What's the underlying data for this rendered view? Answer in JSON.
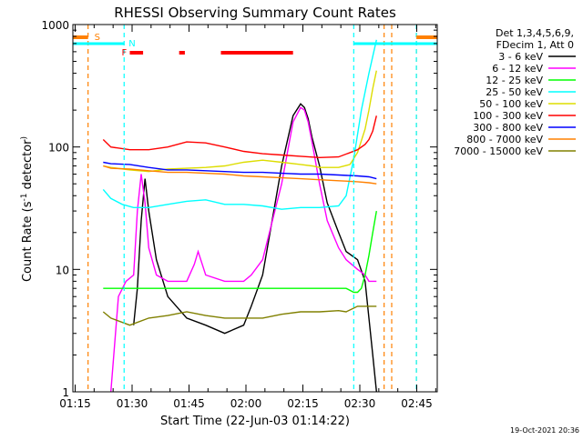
{
  "chart_data": {
    "type": "line",
    "title": "RHESSI Observing Summary Count Rates",
    "xlabel": "Start Time (22-Jun-03 01:14:22)",
    "ylabel_main": "Count Rate (s",
    "ylabel_sup": "-1",
    "ylabel_tail": " detector",
    "ylabel_end": ")",
    "x_unit": "minutes after 01:14:22",
    "xlim": [
      0,
      96
    ],
    "ylim": [
      1,
      1000
    ],
    "yscale": "log",
    "x_ticks": [
      {
        "label": "01:15",
        "value": 0.6
      },
      {
        "label": "01:30",
        "value": 15.6
      },
      {
        "label": "01:45",
        "value": 30.6
      },
      {
        "label": "02:00",
        "value": 45.6
      },
      {
        "label": "02:15",
        "value": 60.6
      },
      {
        "label": "02:30",
        "value": 75.6
      },
      {
        "label": "02:45",
        "value": 90.6
      }
    ],
    "y_ticks": [
      {
        "label": "1",
        "value": 1
      },
      {
        "label": "10",
        "value": 10
      },
      {
        "label": "100",
        "value": 100
      },
      {
        "label": "1000",
        "value": 1000
      }
    ],
    "legend_header": [
      "Det 1,3,4,5,6,9,",
      "FDecim 1, Att 0"
    ],
    "legend_position": "right",
    "timestamp": "19-Oct-2021 20:36",
    "series": [
      {
        "name": "3 - 6 keV",
        "color": "#000000",
        "x": [
          16,
          17,
          18,
          19,
          20,
          22,
          25,
          30,
          35,
          40,
          45,
          47,
          50,
          55,
          58,
          60,
          61,
          62,
          63,
          65,
          67,
          70,
          72,
          75,
          77,
          78,
          79,
          80
        ],
        "values": [
          3.5,
          7,
          25,
          55,
          30,
          12,
          6,
          4,
          3.5,
          3,
          3.5,
          5,
          9,
          70,
          180,
          225,
          210,
          170,
          120,
          70,
          35,
          20,
          14,
          12,
          8,
          4,
          2,
          1
        ]
      },
      {
        "name": "6 - 12 keV",
        "color": "#ff00ff",
        "x": [
          10,
          12,
          14,
          16,
          17,
          18,
          19,
          20,
          22,
          25,
          30,
          32,
          33,
          35,
          40,
          45,
          47,
          50,
          55,
          58,
          60,
          61,
          62,
          63,
          65,
          67,
          70,
          72,
          75,
          77,
          78,
          79,
          80
        ],
        "values": [
          1,
          6,
          8,
          9,
          30,
          60,
          35,
          15,
          9,
          8,
          8,
          11,
          14,
          9,
          8,
          8,
          9,
          12,
          50,
          160,
          210,
          200,
          160,
          110,
          50,
          25,
          15,
          12,
          10,
          9,
          8,
          8,
          8
        ]
      },
      {
        "name": "12 - 25 keV",
        "color": "#00ff00",
        "x": [
          8,
          10,
          15,
          20,
          25,
          30,
          35,
          40,
          45,
          50,
          55,
          60,
          65,
          70,
          72,
          74,
          75,
          76,
          77,
          78,
          79,
          80
        ],
        "values": [
          7,
          7,
          7,
          7,
          7,
          7,
          7,
          7,
          7,
          7,
          7,
          7,
          7,
          7,
          7,
          6.5,
          6.5,
          7,
          9,
          13,
          20,
          30
        ]
      },
      {
        "name": "25 - 50 keV",
        "color": "#00ffff",
        "x": [
          8,
          10,
          13,
          16,
          20,
          25,
          30,
          35,
          40,
          45,
          50,
          55,
          60,
          65,
          70,
          72,
          74,
          76,
          78,
          80
        ],
        "values": [
          45,
          38,
          34,
          32,
          32,
          34,
          36,
          37,
          34,
          34,
          33,
          31,
          32,
          32,
          33,
          40,
          80,
          200,
          400,
          750
        ]
      },
      {
        "name": "50 - 100 keV",
        "color": "#dddd00",
        "x": [
          8,
          10,
          15,
          20,
          25,
          30,
          35,
          40,
          45,
          50,
          55,
          60,
          63,
          65,
          70,
          73,
          75,
          77,
          78,
          79,
          80
        ],
        "values": [
          70,
          68,
          65,
          63,
          66,
          67,
          68,
          70,
          75,
          78,
          75,
          72,
          70,
          68,
          68,
          72,
          90,
          140,
          200,
          300,
          420
        ]
      },
      {
        "name": "100 - 300 keV",
        "color": "#ff0000",
        "x": [
          8,
          10,
          15,
          20,
          25,
          30,
          35,
          40,
          45,
          50,
          55,
          60,
          65,
          70,
          75,
          77,
          78,
          79,
          80
        ],
        "values": [
          115,
          100,
          95,
          95,
          100,
          110,
          108,
          100,
          92,
          88,
          86,
          84,
          82,
          83,
          95,
          105,
          115,
          135,
          180
        ]
      },
      {
        "name": "300 - 800 keV",
        "color": "#0000ff",
        "x": [
          8,
          10,
          15,
          20,
          25,
          30,
          35,
          40,
          45,
          50,
          55,
          60,
          65,
          70,
          75,
          78,
          80
        ],
        "values": [
          75,
          73,
          72,
          68,
          65,
          65,
          64,
          63,
          62,
          62,
          61,
          60,
          60,
          59,
          58,
          57,
          55
        ]
      },
      {
        "name": "800 - 7000 keV",
        "color": "#ff8000",
        "x": [
          8,
          10,
          15,
          20,
          25,
          30,
          35,
          40,
          45,
          50,
          55,
          60,
          65,
          70,
          75,
          78,
          80
        ],
        "values": [
          70,
          67,
          66,
          64,
          62,
          62,
          61,
          60,
          58,
          57,
          56,
          55,
          54,
          53,
          52,
          51,
          50
        ]
      },
      {
        "name": "7000 - 15000 keV",
        "color": "#808000",
        "x": [
          8,
          10,
          15,
          20,
          25,
          30,
          35,
          40,
          45,
          50,
          55,
          60,
          65,
          70,
          72,
          75,
          80
        ],
        "values": [
          4.5,
          4,
          3.5,
          4,
          4.2,
          4.5,
          4.2,
          4,
          4,
          4,
          4.3,
          4.5,
          4.5,
          4.6,
          4.5,
          5,
          5
        ]
      }
    ],
    "annotations": {
      "saa": {
        "label": "S",
        "color": "#ff8000",
        "lines": [
          4,
          82,
          84,
          90.5
        ],
        "bars": [
          [
            0,
            4
          ],
          [
            90.5,
            96
          ]
        ]
      },
      "night": {
        "label": "N",
        "color": "#00ffff",
        "lines": [
          13.5,
          74,
          90.5
        ],
        "bars": [
          [
            0,
            13.5
          ],
          [
            74,
            96
          ]
        ]
      },
      "flare": {
        "label": "F",
        "color": "#ff0000",
        "bars": [
          [
            15,
            18.5
          ],
          [
            28,
            29.5
          ],
          [
            39,
            58
          ]
        ]
      }
    }
  }
}
